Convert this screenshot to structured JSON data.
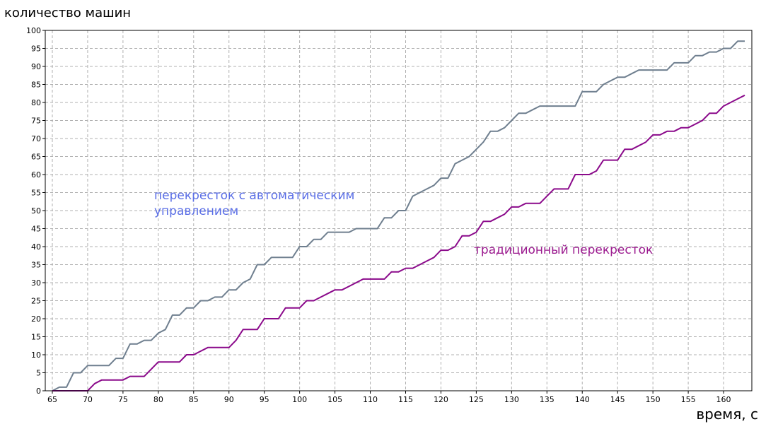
{
  "chart_data": {
    "type": "line",
    "title": "",
    "ylabel": "количество машин",
    "xlabel": "время, с",
    "xlim": [
      64,
      164
    ],
    "ylim": [
      0,
      100
    ],
    "xticks": [
      65,
      70,
      75,
      80,
      85,
      90,
      95,
      100,
      105,
      110,
      115,
      120,
      125,
      130,
      135,
      140,
      145,
      150,
      155,
      160
    ],
    "yticks": [
      0,
      5,
      10,
      15,
      20,
      25,
      30,
      35,
      40,
      45,
      50,
      55,
      60,
      65,
      70,
      75,
      80,
      85,
      90,
      95,
      100
    ],
    "grid": true,
    "x": [
      65,
      66,
      67,
      68,
      69,
      70,
      71,
      72,
      73,
      74,
      75,
      76,
      77,
      78,
      79,
      80,
      81,
      82,
      83,
      84,
      85,
      86,
      87,
      88,
      89,
      90,
      91,
      92,
      93,
      94,
      95,
      96,
      97,
      98,
      99,
      100,
      101,
      102,
      103,
      104,
      105,
      106,
      107,
      108,
      109,
      110,
      111,
      112,
      113,
      114,
      115,
      116,
      117,
      118,
      119,
      120,
      121,
      122,
      123,
      124,
      125,
      126,
      127,
      128,
      129,
      130,
      131,
      132,
      133,
      134,
      135,
      136,
      137,
      138,
      139,
      140,
      141,
      142,
      143,
      144,
      145,
      146,
      147,
      148,
      149,
      150,
      151,
      152,
      153,
      154,
      155,
      156,
      157,
      158,
      159,
      160,
      161,
      162,
      163
    ],
    "series": [
      {
        "name": "перекресток с автоматическим управлением",
        "color": "#6f7f8f",
        "values": [
          0,
          1,
          1,
          5,
          5,
          7,
          7,
          7,
          7,
          9,
          9,
          13,
          13,
          14,
          14,
          16,
          17,
          21,
          21,
          23,
          23,
          25,
          25,
          26,
          26,
          28,
          28,
          30,
          31,
          35,
          35,
          37,
          37,
          37,
          37,
          40,
          40,
          42,
          42,
          44,
          44,
          44,
          44,
          45,
          45,
          45,
          45,
          48,
          48,
          50,
          50,
          54,
          55,
          56,
          57,
          59,
          59,
          63,
          64,
          65,
          67,
          69,
          72,
          72,
          73,
          75,
          77,
          77,
          78,
          79,
          79,
          79,
          79,
          79,
          79,
          83,
          83,
          83,
          85,
          86,
          87,
          87,
          88,
          89,
          89,
          89,
          89,
          89,
          91,
          91,
          91,
          93,
          93,
          94,
          94,
          95,
          95,
          97,
          97
        ]
      },
      {
        "name": "традиционный перекресток",
        "color": "#8b0a8b",
        "values": [
          0,
          0,
          0,
          0,
          0,
          0,
          2,
          3,
          3,
          3,
          3,
          4,
          4,
          4,
          6,
          8,
          8,
          8,
          8,
          10,
          10,
          11,
          12,
          12,
          12,
          12,
          14,
          17,
          17,
          17,
          20,
          20,
          20,
          23,
          23,
          23,
          25,
          25,
          26,
          27,
          28,
          28,
          29,
          30,
          31,
          31,
          31,
          31,
          33,
          33,
          34,
          34,
          35,
          36,
          37,
          39,
          39,
          40,
          43,
          43,
          44,
          47,
          47,
          48,
          49,
          51,
          51,
          52,
          52,
          52,
          54,
          56,
          56,
          56,
          60,
          60,
          60,
          61,
          64,
          64,
          64,
          67,
          67,
          68,
          69,
          71,
          71,
          72,
          72,
          73,
          73,
          74,
          75,
          77,
          77,
          79,
          80,
          81,
          82
        ]
      }
    ],
    "annotations": [
      {
        "text": "перекресток с автоматическим\nуправлением",
        "series": 0
      },
      {
        "text": "традиционный перекресток",
        "series": 1
      }
    ]
  },
  "annotation_lines": {
    "auto_line1": "перекресток с автоматическим",
    "auto_line2": "управлением",
    "trad": "традиционный перекресток"
  }
}
